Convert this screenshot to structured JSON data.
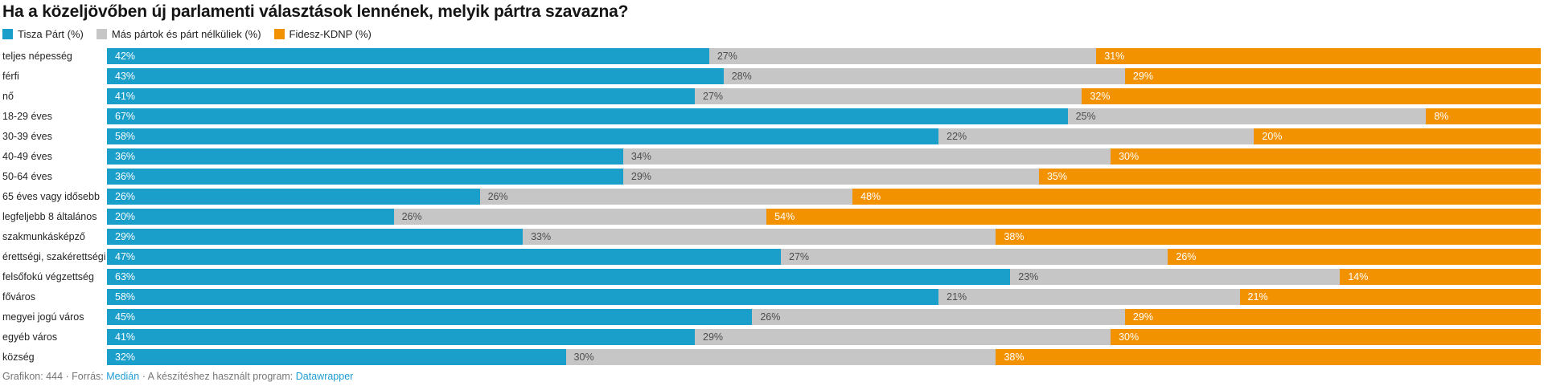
{
  "title": "Ha a közeljövőben új parlamenti választások lennének, melyik pártra szavazna?",
  "legend": {
    "items": [
      {
        "label": "Tisza Párt (%)",
        "color": "#1a9eca"
      },
      {
        "label": "Más pártok és párt nélküliek (%)",
        "color": "#c6c6c6"
      },
      {
        "label": "Fidesz-KDNP (%)",
        "color": "#f39200"
      }
    ]
  },
  "chart_data": {
    "type": "bar",
    "stacked": true,
    "orientation": "horizontal",
    "unit": "%",
    "xlim": [
      0,
      100
    ],
    "grid": false,
    "legend_position": "top",
    "value_label_suffix": "%",
    "categories": [
      "teljes népesség",
      "férfi",
      "nő",
      "18-29 éves",
      "30-39 éves",
      "40-49 éves",
      "50-64 éves",
      "65 éves vagy idősebb",
      "legfeljebb 8 általános",
      "szakmunkásképző",
      "érettségi, szakérettségi",
      "felsőfokú végzettség",
      "főváros",
      "megyei jogú város",
      "egyéb város",
      "község"
    ],
    "series": [
      {
        "name": "Tisza Párt (%)",
        "color": "#1a9eca",
        "label_color": "#ffffff",
        "values": [
          42,
          43,
          41,
          67,
          58,
          36,
          36,
          26,
          20,
          29,
          47,
          63,
          58,
          45,
          41,
          32
        ]
      },
      {
        "name": "Más pártok és párt nélküliek (%)",
        "color": "#c6c6c6",
        "label_color": "#4d4d4d",
        "values": [
          27,
          28,
          27,
          25,
          22,
          34,
          29,
          26,
          26,
          33,
          27,
          23,
          21,
          26,
          29,
          30
        ]
      },
      {
        "name": "Fidesz-KDNP (%)",
        "color": "#f39200",
        "label_color": "#ffffff",
        "values": [
          31,
          29,
          32,
          8,
          20,
          30,
          35,
          48,
          54,
          38,
          26,
          14,
          21,
          29,
          30,
          38
        ]
      }
    ]
  },
  "footer": {
    "prefix": "Grafikon: 444 · Forrás: ",
    "source_link": "Medián",
    "middle": " · A készítéshez használt program: ",
    "tool_link": "Datawrapper",
    "link_color": "#1d9dd4"
  }
}
